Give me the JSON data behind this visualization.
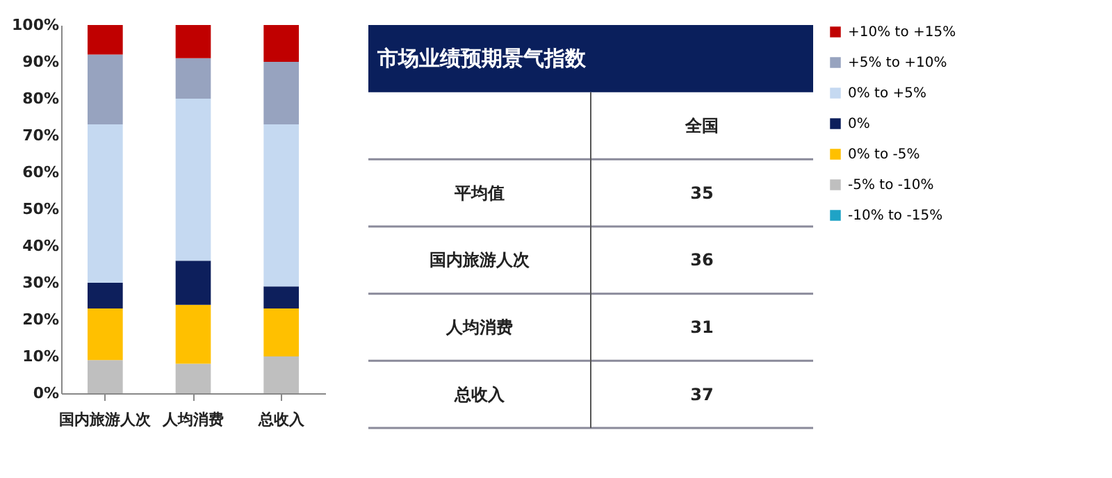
{
  "chart_data": [
    {
      "type": "bar",
      "stacked": true,
      "categories": [
        "国内旅游人次",
        "人均消费",
        "总收入"
      ],
      "series": [
        {
          "name": "-10% to -15%",
          "color": "#1fa3c6",
          "values": [
            0,
            0,
            0
          ]
        },
        {
          "name": "-5% to -10%",
          "color": "#bfbfbf",
          "values": [
            9,
            8,
            10
          ]
        },
        {
          "name": "0% to -5%",
          "color": "#ffc000",
          "values": [
            14,
            16,
            13
          ]
        },
        {
          "name": "0%",
          "color": "#0d1f5c",
          "values": [
            7,
            12,
            6
          ]
        },
        {
          "name": "0% to +5%",
          "color": "#c5d9f1",
          "values": [
            43,
            44,
            44
          ]
        },
        {
          "name": "+5% to +10%",
          "color": "#97a3bf",
          "values": [
            19,
            11,
            17
          ]
        },
        {
          "name": "+10% to +15%",
          "color": "#c00000",
          "values": [
            8,
            9,
            10
          ]
        }
      ],
      "ylim": [
        0,
        100
      ],
      "yticks": [
        {
          "value": 0,
          "label": "0%"
        },
        {
          "value": 10,
          "label": "10%"
        },
        {
          "value": 20,
          "label": "20%"
        },
        {
          "value": 30,
          "label": "30%"
        },
        {
          "value": 40,
          "label": "40%"
        },
        {
          "value": 50,
          "label": "50%"
        },
        {
          "value": 60,
          "label": "60%"
        },
        {
          "value": 70,
          "label": "70%"
        },
        {
          "value": 80,
          "label": "80%"
        },
        {
          "value": 90,
          "label": "90%"
        },
        {
          "value": 100,
          "label": "100%"
        }
      ],
      "grid": false,
      "legend": "right"
    },
    {
      "type": "other",
      "title": "市场业绩预期景气指数",
      "categories": [
        "平均值",
        "国内旅游人次",
        "人均消费",
        "总收入"
      ],
      "series": [
        {
          "name": "全国",
          "values": [
            35,
            36,
            31,
            37
          ]
        }
      ],
      "data_labels": true
    }
  ]
}
